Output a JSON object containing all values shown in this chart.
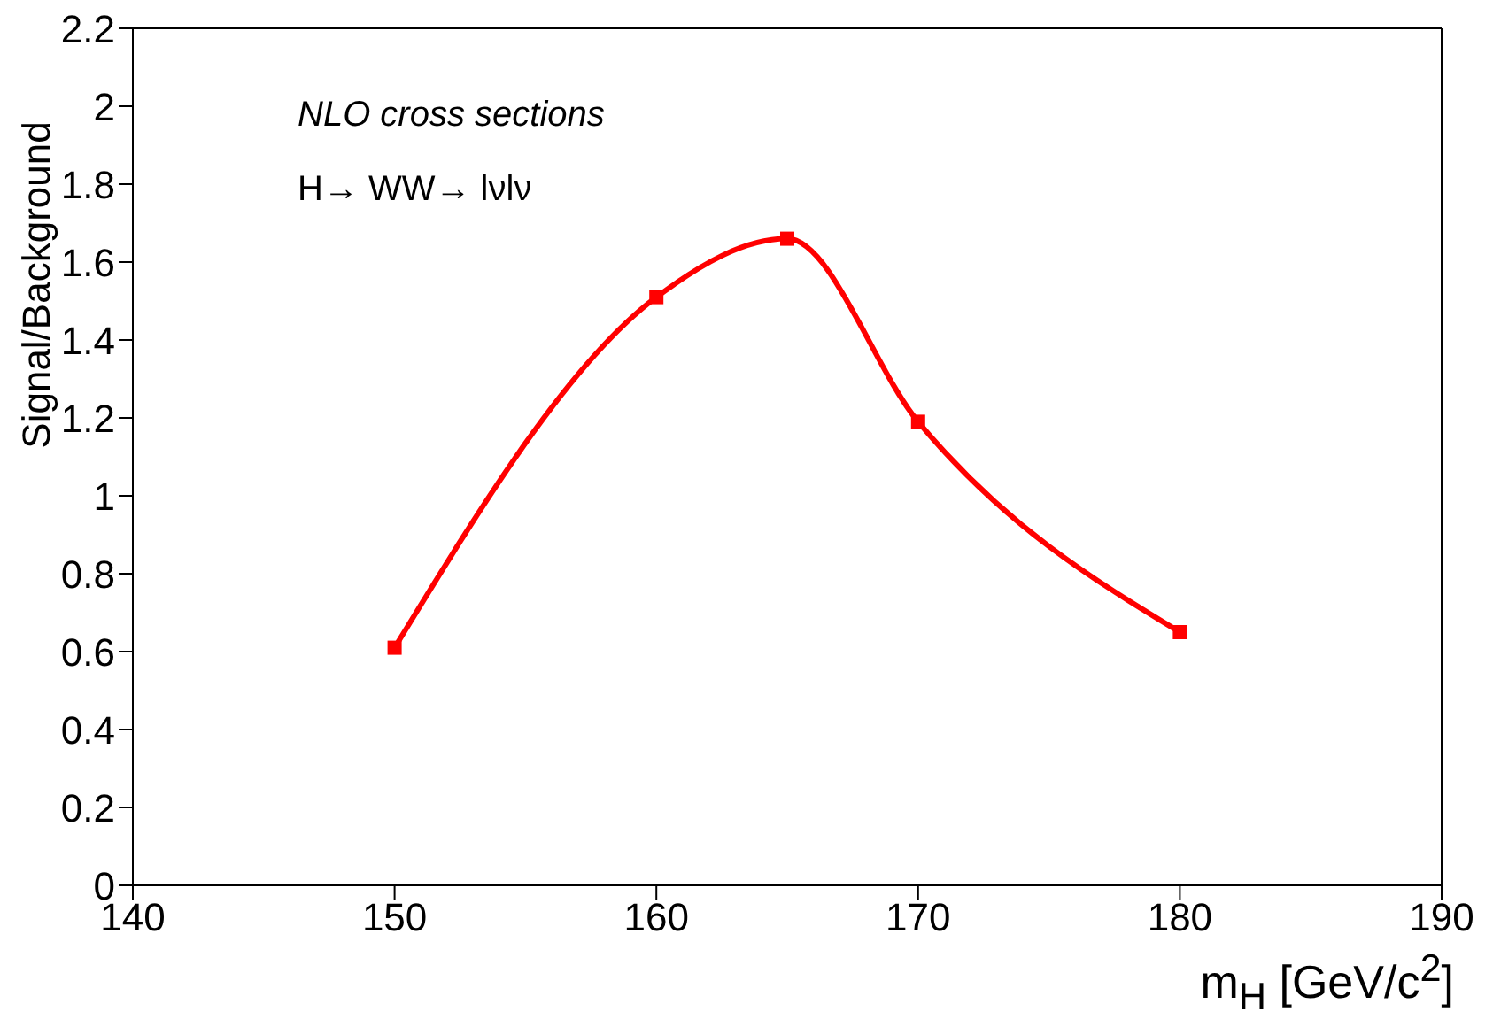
{
  "chart_data": {
    "type": "line",
    "xlabel": "m$_{H}$ [GeV/c$^{2}$]",
    "ylabel": "Signal/Background",
    "annotations": [
      "NLO cross sections",
      "H→ WW→ lνlν"
    ],
    "x": [
      150,
      160,
      165,
      170,
      180
    ],
    "series": [
      {
        "color": "#ff0000",
        "values": [
          0.61,
          1.51,
          1.66,
          1.19,
          0.65
        ]
      }
    ],
    "xlim": [
      140,
      190
    ],
    "xticks": [
      140,
      150,
      160,
      170,
      180,
      190
    ],
    "ylim": [
      0,
      2.2
    ],
    "yticks": [
      0,
      0.2,
      0.4,
      0.6,
      0.8,
      1,
      1.2,
      1.4,
      1.6,
      1.8,
      2,
      2.2
    ],
    "grid": false,
    "marker": "square",
    "line_style": "solid"
  }
}
